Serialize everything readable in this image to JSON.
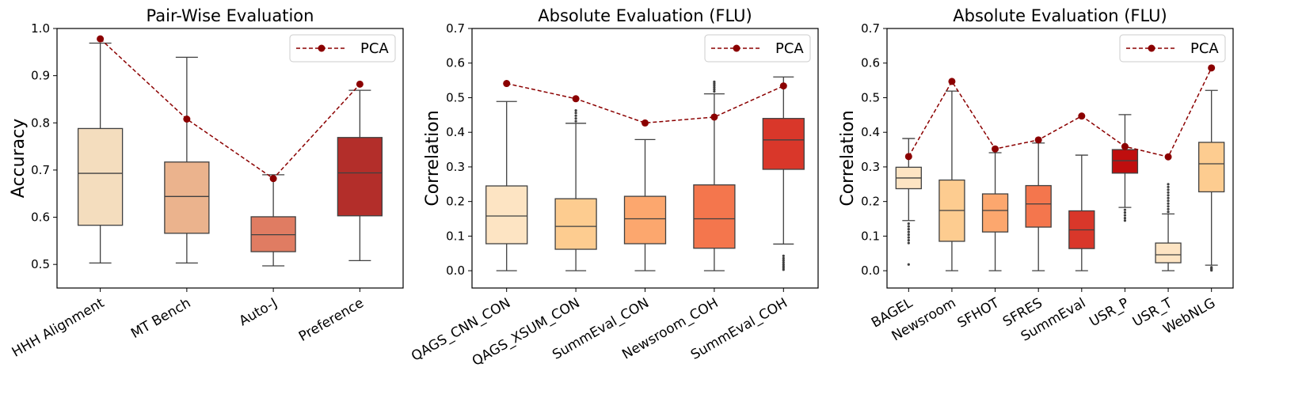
{
  "chart_data": [
    {
      "type": "box",
      "title": "Pair-Wise Evaluation",
      "ylabel": "Accuracy",
      "ylim": [
        0.45,
        1.0
      ],
      "yticks": [
        "0.5",
        "0.6",
        "0.7",
        "0.8",
        "0.9",
        "1.0"
      ],
      "legend": {
        "label": "PCA",
        "position": "top-right"
      },
      "categories": [
        "HHH Alignment",
        "MT Bench",
        "Auto-J",
        "Preference"
      ],
      "colors": [
        "#f4ddbe",
        "#ebb38d",
        "#e07c62",
        "#b32e2a"
      ],
      "boxes": [
        {
          "whislo": 0.503,
          "q1": 0.583,
          "med": 0.693,
          "q3": 0.788,
          "whishi": 0.969,
          "fliers": []
        },
        {
          "whislo": 0.503,
          "q1": 0.566,
          "med": 0.644,
          "q3": 0.717,
          "whishi": 0.939,
          "fliers": []
        },
        {
          "whislo": 0.497,
          "q1": 0.527,
          "med": 0.563,
          "q3": 0.601,
          "whishi": 0.69,
          "fliers": []
        },
        {
          "whislo": 0.508,
          "q1": 0.603,
          "med": 0.694,
          "q3": 0.769,
          "whishi": 0.869,
          "fliers": []
        }
      ],
      "pca": [
        0.978,
        0.808,
        0.682,
        0.882
      ]
    },
    {
      "type": "box",
      "title": "Absolute Evaluation (FLU)",
      "ylabel": "Correlation",
      "ylim": [
        -0.05,
        0.7
      ],
      "yticks": [
        "0.0",
        "0.1",
        "0.2",
        "0.3",
        "0.4",
        "0.5",
        "0.6",
        "0.7"
      ],
      "legend": {
        "label": "PCA",
        "position": "top-right"
      },
      "categories": [
        "QAGS_CNN_CON",
        "QAGS_XSUM_CON",
        "SummEval_CON",
        "Newsroom_COH",
        "SummEval_COH"
      ],
      "colors": [
        "#fde4c3",
        "#fdcc90",
        "#fca76e",
        "#f4764d",
        "#d9372a"
      ],
      "boxes": [
        {
          "whislo": 0.0,
          "q1": 0.078,
          "med": 0.158,
          "q3": 0.245,
          "whishi": 0.489,
          "fliers": []
        },
        {
          "whislo": 0.0,
          "q1": 0.062,
          "med": 0.128,
          "q3": 0.208,
          "whishi": 0.426,
          "fliers": [
            0.432,
            0.44,
            0.448,
            0.456,
            0.463
          ]
        },
        {
          "whislo": 0.0,
          "q1": 0.078,
          "med": 0.15,
          "q3": 0.215,
          "whishi": 0.379,
          "fliers": []
        },
        {
          "whislo": 0.0,
          "q1": 0.065,
          "med": 0.15,
          "q3": 0.248,
          "whishi": 0.511,
          "fliers": [
            0.518,
            0.524,
            0.53,
            0.536,
            0.541,
            0.546
          ]
        },
        {
          "whislo": 0.077,
          "q1": 0.293,
          "med": 0.378,
          "q3": 0.44,
          "whishi": 0.56,
          "fliers": [
            0.003,
            0.008,
            0.013,
            0.018,
            0.024,
            0.03,
            0.036,
            0.043
          ]
        }
      ],
      "pca": [
        0.541,
        0.497,
        0.427,
        0.444,
        0.534
      ]
    },
    {
      "type": "box",
      "title": "Absolute Evaluation (FLU)",
      "ylabel": "Correlation",
      "ylim": [
        -0.05,
        0.7
      ],
      "yticks": [
        "0.0",
        "0.1",
        "0.2",
        "0.3",
        "0.4",
        "0.5",
        "0.6",
        "0.7"
      ],
      "legend": {
        "label": "PCA",
        "position": "top-right"
      },
      "categories": [
        "BAGEL",
        "Newsroom",
        "SFHOT",
        "SFRES",
        "SummEval",
        "USR_P",
        "USR_T",
        "WebNLG"
      ],
      "colors": [
        "#fde4c3",
        "#fdcc90",
        "#fca76e",
        "#f4764d",
        "#d9372a",
        "#bf0e0e",
        "#fde4c3",
        "#fdcc90"
      ],
      "boxes": [
        {
          "whislo": 0.145,
          "q1": 0.237,
          "med": 0.268,
          "q3": 0.299,
          "whishi": 0.382,
          "fliers": [
            0.018,
            0.08,
            0.088,
            0.096,
            0.104,
            0.112,
            0.12,
            0.128,
            0.136
          ]
        },
        {
          "whislo": 0.0,
          "q1": 0.085,
          "med": 0.174,
          "q3": 0.262,
          "whishi": 0.519,
          "fliers": []
        },
        {
          "whislo": 0.0,
          "q1": 0.112,
          "med": 0.174,
          "q3": 0.222,
          "whishi": 0.341,
          "fliers": []
        },
        {
          "whislo": 0.0,
          "q1": 0.126,
          "med": 0.193,
          "q3": 0.246,
          "whishi": 0.369,
          "fliers": []
        },
        {
          "whislo": 0.0,
          "q1": 0.064,
          "med": 0.118,
          "q3": 0.173,
          "whishi": 0.334,
          "fliers": []
        },
        {
          "whislo": 0.183,
          "q1": 0.282,
          "med": 0.318,
          "q3": 0.35,
          "whishi": 0.451,
          "fliers": [
            0.145,
            0.152,
            0.16,
            0.168,
            0.176
          ]
        },
        {
          "whislo": 0.0,
          "q1": 0.023,
          "med": 0.046,
          "q3": 0.08,
          "whishi": 0.164,
          "fliers": [
            0.17,
            0.178,
            0.186,
            0.194,
            0.202,
            0.21,
            0.218,
            0.226,
            0.234,
            0.242,
            0.25
          ]
        },
        {
          "whislo": 0.016,
          "q1": 0.228,
          "med": 0.309,
          "q3": 0.371,
          "whishi": 0.521,
          "fliers": [
            0.001,
            0.004,
            0.007,
            0.01
          ]
        }
      ],
      "pca": [
        0.33,
        0.547,
        0.352,
        0.378,
        0.447,
        0.359,
        0.329,
        0.586
      ]
    }
  ]
}
